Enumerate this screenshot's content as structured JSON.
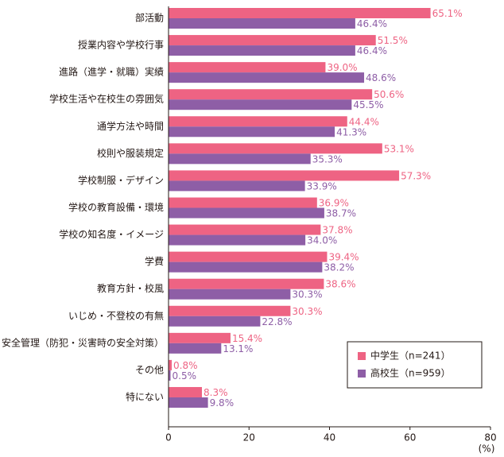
{
  "chart_data": {
    "type": "hbar",
    "categories": [
      "部活動",
      "授業内容や学校行事",
      "進路（進学・就職）実績",
      "学校生活や在校生の雰囲気",
      "通学方法や時間",
      "校則や服装規定",
      "学校制服・デザイン",
      "学校の教育設備・環境",
      "学校の知名度・イメージ",
      "学費",
      "教育方針・校風",
      "いじめ・不登校の有無",
      "安全管理（防犯・災害時の安全対策）",
      "その他",
      "特にない"
    ],
    "series": [
      {
        "name": "中学生（n=241）",
        "color": "#ee6383",
        "values": [
          65.1,
          51.5,
          39.0,
          50.6,
          44.4,
          53.1,
          57.3,
          36.9,
          37.8,
          39.4,
          38.6,
          30.3,
          15.4,
          0.8,
          8.3
        ],
        "value_labels": [
          "65.1%",
          "51.5%",
          "39.0%",
          "50.6%",
          "44.4%",
          "53.1%",
          "57.3%",
          "36.9%",
          "37.8%",
          "39.4%",
          "38.6%",
          "30.3%",
          "15.4%",
          "0.8%",
          "8.3%"
        ]
      },
      {
        "name": "高校生（n=959）",
        "color": "#8e5ea6",
        "values": [
          46.4,
          46.4,
          48.6,
          45.5,
          41.3,
          35.3,
          33.9,
          38.7,
          34.0,
          38.2,
          30.3,
          22.8,
          13.1,
          0.5,
          9.8
        ],
        "value_labels": [
          "46.4%",
          "46.4%",
          "48.6%",
          "45.5%",
          "41.3%",
          "35.3%",
          "33.9%",
          "38.7%",
          "34.0%",
          "38.2%",
          "30.3%",
          "22.8%",
          "13.1%",
          "0.5%",
          "9.8%"
        ]
      }
    ],
    "xlabel": "(%)",
    "xlim": [
      0,
      80
    ],
    "xticks": [
      0,
      20,
      40,
      60,
      80
    ],
    "legend": "lower-right"
  }
}
